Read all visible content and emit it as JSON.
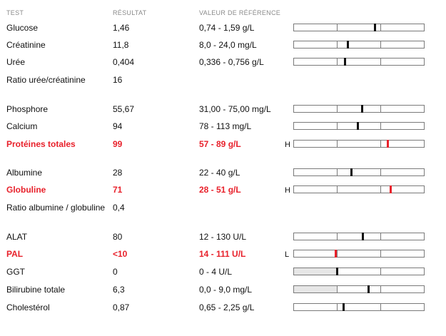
{
  "header": {
    "test": "TEST",
    "result": "RÉSULTAT",
    "reference": "VALEUR DE RÉFÉRENCE"
  },
  "rows": [
    {
      "test": "Glucose",
      "result": "1,46",
      "reference": "0,74 - 1,59 g/L",
      "flag": "",
      "abnormal": false,
      "gauge": true,
      "marker_fraction": 0.62,
      "fill_low": false
    },
    {
      "test": "Créatinine",
      "result": "11,8",
      "reference": "8,0 - 24,0 mg/L",
      "flag": "",
      "abnormal": false,
      "gauge": true,
      "marker_fraction": 0.41,
      "fill_low": false
    },
    {
      "test": "Urée",
      "result": "0,404",
      "reference": "0,336 - 0,756 g/L",
      "flag": "",
      "abnormal": false,
      "gauge": true,
      "marker_fraction": 0.39,
      "fill_low": false
    },
    {
      "test": "Ratio urée/créatinine",
      "result": "16",
      "reference": "",
      "flag": "",
      "abnormal": false,
      "gauge": false
    },
    {
      "test": "Phosphore",
      "result": "55,67",
      "reference": "31,00 - 75,00 mg/L",
      "flag": "",
      "abnormal": false,
      "gauge": true,
      "marker_fraction": 0.52,
      "fill_low": false
    },
    {
      "test": "Calcium",
      "result": "94",
      "reference": "78 - 113 mg/L",
      "flag": "",
      "abnormal": false,
      "gauge": true,
      "marker_fraction": 0.49,
      "fill_low": false
    },
    {
      "test": "Protéines totales",
      "result": "99",
      "reference": "57 - 89 g/L",
      "flag": "H",
      "abnormal": true,
      "gauge": true,
      "marker_fraction": 0.72,
      "fill_low": false
    },
    {
      "test": "Albumine",
      "result": "28",
      "reference": "22 - 40 g/L",
      "flag": "",
      "abnormal": false,
      "gauge": true,
      "marker_fraction": 0.44,
      "fill_low": false
    },
    {
      "test": "Globuline",
      "result": "71",
      "reference": "28 - 51 g/L",
      "flag": "H",
      "abnormal": true,
      "gauge": true,
      "marker_fraction": 0.74,
      "fill_low": false
    },
    {
      "test": "Ratio albumine / globuline",
      "result": "0,4",
      "reference": "",
      "flag": "",
      "abnormal": false,
      "gauge": false
    },
    {
      "test": "ALAT",
      "result": "80",
      "reference": "12 - 130 U/L",
      "flag": "",
      "abnormal": false,
      "gauge": true,
      "marker_fraction": 0.53,
      "fill_low": false
    },
    {
      "test": "PAL",
      "result": "<10",
      "reference": "14 - 111 U/L",
      "flag": "L",
      "abnormal": true,
      "gauge": true,
      "marker_fraction": 0.32,
      "fill_low": false
    },
    {
      "test": "GGT",
      "result": "0",
      "reference": "0 - 4 U/L",
      "flag": "",
      "abnormal": false,
      "gauge": true,
      "marker_fraction": 0.33,
      "fill_low": true
    },
    {
      "test": "Bilirubine totale",
      "result": "6,3",
      "reference": "0,0 - 9,0 mg/L",
      "flag": "",
      "abnormal": false,
      "gauge": true,
      "marker_fraction": 0.57,
      "fill_low": true
    },
    {
      "test": "Cholestérol",
      "result": "0,87",
      "reference": "0,65 - 2,25 g/L",
      "flag": "",
      "abnormal": false,
      "gauge": true,
      "marker_fraction": 0.38,
      "fill_low": false
    }
  ],
  "colors": {
    "abnormal": "#e8212b",
    "normal": "#111111",
    "header": "#8a8a8a"
  }
}
